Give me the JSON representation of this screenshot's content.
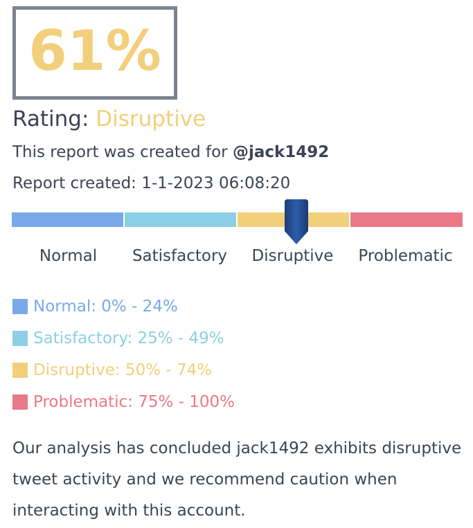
{
  "score": {
    "value": "61%",
    "level": 0.61,
    "color": "#f2cf7b"
  },
  "rating": {
    "label": "Rating:",
    "value": "Disruptive",
    "color": "#f2cf7b"
  },
  "report": {
    "created_for_prefix": "This report was created for ",
    "handle": "@jack1492",
    "created_label": "Report created: ",
    "created_value": "1-1-2023 06:08:20"
  },
  "scale": {
    "marker_icon": "down-arrow-pin-icon",
    "segments": [
      {
        "label": "Normal",
        "color": "#79a9e9"
      },
      {
        "label": "Satisfactory",
        "color": "#8ccfe4"
      },
      {
        "label": "Disruptive",
        "color": "#f2cf7b"
      },
      {
        "label": "Problematic",
        "color": "#ea7987"
      }
    ]
  },
  "legend": [
    {
      "text": "Normal: 0% - 24%",
      "color": "#79a9e9"
    },
    {
      "text": "Satisfactory: 25% - 49%",
      "color": "#8ccfe4"
    },
    {
      "text": "Disruptive: 50% - 74%",
      "color": "#f2cf7b"
    },
    {
      "text": "Problematic: 75% - 100%",
      "color": "#ea7987"
    }
  ],
  "conclusion": "Our analysis has concluded jack1492 exhibits disruptive tweet activity and we recommend caution when interacting with this account."
}
